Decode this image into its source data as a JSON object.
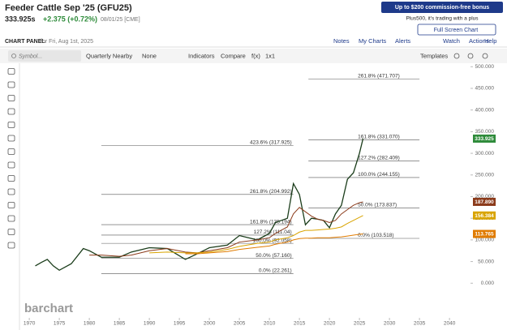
{
  "header": {
    "title": "Feeder Cattle Sep '25 (GFU25)",
    "price": "333.925s",
    "change": "+2.375 (+0.72%)",
    "date_exchange": "08/01/25 [CME]"
  },
  "ad": {
    "headline": "Up to $200 commission-free bonus",
    "sub": "Plus500, it's trading with a plus",
    "button": "Full Screen Chart"
  },
  "panel": {
    "label": "CHART PANEL",
    "date": "for Fri, Aug 1st, 2025",
    "links": [
      "Notes",
      "My Charts",
      "Alerts",
      "Watch",
      "Actions",
      "Help"
    ]
  },
  "toolbar": {
    "symbol_placeholder": "Symbol...",
    "items": [
      "Quarterly Nearby",
      "None",
      "Indicators",
      "Compare",
      "f(x)",
      "1x1"
    ],
    "templates": "Templates"
  },
  "chart_data": {
    "type": "line",
    "watermark": "barchart",
    "x": [
      1971,
      1972,
      1973,
      1974,
      1975,
      1977,
      1979,
      1980,
      1982,
      1985,
      1987,
      1990,
      1993,
      1996,
      1998,
      2000,
      2003,
      2005,
      2008,
      2010,
      2011,
      2013,
      2014,
      2015,
      2016,
      2017,
      2018,
      2019,
      2020,
      2021,
      2022,
      2023,
      2024,
      2025,
      2025.6
    ],
    "series": [
      {
        "name": "GFU25",
        "color": "#1b3d1b",
        "last_value_label": "333.925",
        "tag_color": "#2e8b3a",
        "values": [
          40,
          48,
          55,
          40,
          30,
          45,
          80,
          75,
          60,
          60,
          72,
          82,
          80,
          55,
          68,
          82,
          88,
          110,
          100,
          115,
          140,
          150,
          230,
          205,
          135,
          150,
          148,
          145,
          128,
          160,
          180,
          240,
          255,
          300,
          333.925
        ]
      },
      {
        "name": "MA 1",
        "color": "#8b3a1a",
        "last_value_label": "187.890",
        "tag_color": "#8b3a1a",
        "values": [
          null,
          null,
          null,
          null,
          null,
          null,
          null,
          65,
          65,
          62,
          65,
          75,
          80,
          72,
          70,
          75,
          82,
          95,
          100,
          105,
          115,
          130,
          160,
          175,
          165,
          155,
          148,
          145,
          140,
          145,
          160,
          170,
          180,
          186,
          187.89
        ]
      },
      {
        "name": "MA 2",
        "color": "#d9a400",
        "last_value_label": "156.384",
        "tag_color": "#d9a400",
        "values": [
          null,
          null,
          null,
          null,
          null,
          null,
          null,
          null,
          null,
          null,
          null,
          70,
          72,
          70,
          70,
          72,
          78,
          85,
          92,
          95,
          100,
          105,
          110,
          118,
          122,
          122,
          123,
          124,
          125,
          127,
          130,
          138,
          145,
          152,
          156.384
        ]
      },
      {
        "name": "MA 3",
        "color": "#e07b00",
        "last_value_label": "113.765",
        "tag_color": "#e07b00",
        "values": [
          null,
          null,
          null,
          null,
          null,
          null,
          null,
          null,
          null,
          null,
          null,
          null,
          null,
          68,
          68,
          70,
          73,
          78,
          83,
          86,
          90,
          95,
          100,
          103,
          104,
          104,
          105,
          105,
          105,
          106,
          107,
          109,
          111,
          113,
          113.765
        ]
      }
    ],
    "fib_sets": [
      {
        "x_range": [
          1982,
          2014
        ],
        "levels": [
          {
            "value": 317.925,
            "label": "423.6% (317.925)"
          },
          {
            "value": 204.992,
            "label": "261.8% (204.992)"
          },
          {
            "value": 135.194,
            "label": "161.8% (135.194)"
          },
          {
            "value": 111.04,
            "label": "127.2% (111.04)"
          },
          {
            "value": 92.058,
            "label": "100.0% (92.058)"
          },
          {
            "value": 57.16,
            "label": "50.0% (57.160)"
          },
          {
            "value": 22.261,
            "label": "0.0% (22.261)"
          }
        ]
      },
      {
        "x_range": [
          2016.5,
          2035
        ],
        "levels": [
          {
            "value": 471.707,
            "label": "261.8% (471.707)"
          },
          {
            "value": 331.07,
            "label": "161.8% (331.070)"
          },
          {
            "value": 282.409,
            "label": "127.2% (282.409)"
          },
          {
            "value": 244.155,
            "label": "100.0% (244.155)"
          },
          {
            "value": 173.837,
            "label": "50.0% (173.837)"
          },
          {
            "value": 103.518,
            "label": "0.0% (103.518)"
          }
        ]
      }
    ],
    "xlim": [
      1968.5,
      2043.5
    ],
    "xticks": [
      1970,
      1975,
      1980,
      1985,
      1990,
      1995,
      2000,
      2005,
      2010,
      2015,
      2020,
      2025,
      2030,
      2035,
      2040
    ],
    "ylim": [
      -80,
      508
    ],
    "yticks": [
      {
        "value": 0,
        "label": "0.000"
      },
      {
        "value": 50,
        "label": "50.000"
      },
      {
        "value": 100,
        "label": "100.000"
      },
      {
        "value": 150,
        "label": "150.000"
      },
      {
        "value": 200,
        "label": "200.000"
      },
      {
        "value": 250,
        "label": "250.000"
      },
      {
        "value": 300,
        "label": "300.000"
      },
      {
        "value": 350,
        "label": "350.000"
      },
      {
        "value": 400,
        "label": "400.000"
      },
      {
        "value": 450,
        "label": "450.000"
      },
      {
        "value": 500,
        "label": "500.000"
      }
    ],
    "grid": false
  }
}
